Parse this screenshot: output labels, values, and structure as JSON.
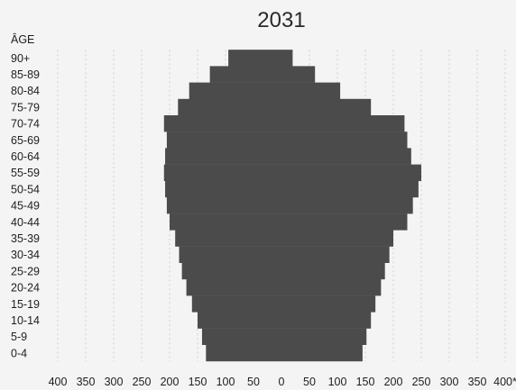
{
  "chart_data": {
    "type": "bar",
    "orientation": "horizontal-population-pyramid",
    "title": "2031",
    "age_axis_title": "ÂGE",
    "categories": [
      "0-4",
      "5-9",
      "10-14",
      "15-19",
      "20-24",
      "25-29",
      "30-34",
      "35-39",
      "40-44",
      "45-49",
      "50-54",
      "55-59",
      "60-64",
      "65-69",
      "70-74",
      "75-79",
      "80-84",
      "85-89",
      "90+"
    ],
    "series": [
      {
        "side": "left",
        "values": [
          135,
          142,
          150,
          160,
          170,
          178,
          183,
          190,
          200,
          205,
          208,
          210,
          208,
          205,
          210,
          185,
          165,
          128,
          95
        ]
      },
      {
        "side": "right",
        "values": [
          145,
          152,
          160,
          168,
          178,
          185,
          193,
          200,
          225,
          235,
          245,
          250,
          232,
          225,
          220,
          160,
          105,
          60,
          20
        ]
      }
    ],
    "x_ticks": [
      "400",
      "350",
      "300",
      "250",
      "200",
      "150",
      "100",
      "50",
      "0",
      "50",
      "100",
      "150",
      "200",
      "250",
      "300",
      "350",
      "400*"
    ],
    "xlim": [
      -400,
      400
    ],
    "grid": true,
    "bar_color": "#4b4b4b",
    "background": "#f4f4f4"
  }
}
